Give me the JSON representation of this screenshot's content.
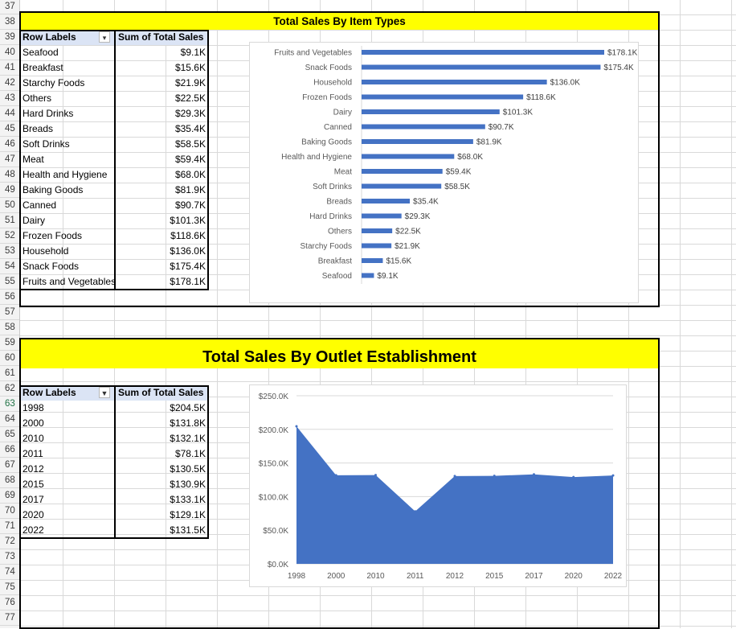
{
  "row_numbers": [
    "37",
    "38",
    "39",
    "40",
    "41",
    "42",
    "43",
    "44",
    "45",
    "46",
    "47",
    "48",
    "49",
    "50",
    "51",
    "52",
    "53",
    "54",
    "55",
    "56",
    "57",
    "58",
    "59",
    "60",
    "61",
    "62",
    "63",
    "64",
    "65",
    "66",
    "67",
    "68",
    "69",
    "70",
    "71",
    "72",
    "73",
    "74",
    "75",
    "76",
    "77"
  ],
  "active_row": "63",
  "item_section": {
    "banner_title": "Total Sales By Item Types",
    "pivot": {
      "header_label": "Row Labels",
      "header_value": "Sum of Total Sales",
      "filter_icon": "sort-filter-icon",
      "rows": [
        {
          "label": "Seafood",
          "value": "$9.1K"
        },
        {
          "label": "Breakfast",
          "value": "$15.6K"
        },
        {
          "label": "Starchy Foods",
          "value": "$21.9K"
        },
        {
          "label": "Others",
          "value": "$22.5K"
        },
        {
          "label": "Hard Drinks",
          "value": "$29.3K"
        },
        {
          "label": "Breads",
          "value": "$35.4K"
        },
        {
          "label": "Soft Drinks",
          "value": "$58.5K"
        },
        {
          "label": "Meat",
          "value": "$59.4K"
        },
        {
          "label": "Health and Hygiene",
          "value": "$68.0K"
        },
        {
          "label": "Baking Goods",
          "value": "$81.9K"
        },
        {
          "label": "Canned",
          "value": "$90.7K"
        },
        {
          "label": "Dairy",
          "value": "$101.3K"
        },
        {
          "label": "Frozen Foods",
          "value": "$118.6K"
        },
        {
          "label": "Household",
          "value": "$136.0K"
        },
        {
          "label": "Snack Foods",
          "value": "$175.4K"
        },
        {
          "label": "Fruits and Vegetables",
          "value": "$178.1K"
        }
      ]
    }
  },
  "outlet_section": {
    "banner_title": "Total Sales By Outlet Establishment",
    "pivot": {
      "header_label": "Row Labels",
      "header_value": "Sum of Total Sales",
      "filter_icon": "dropdown-icon",
      "rows": [
        {
          "label": "1998",
          "value": "$204.5K"
        },
        {
          "label": "2000",
          "value": "$131.8K"
        },
        {
          "label": "2010",
          "value": "$132.1K"
        },
        {
          "label": "2011",
          "value": "$78.1K"
        },
        {
          "label": "2012",
          "value": "$130.5K"
        },
        {
          "label": "2015",
          "value": "$130.9K"
        },
        {
          "label": "2017",
          "value": "$133.1K"
        },
        {
          "label": "2020",
          "value": "$129.1K"
        },
        {
          "label": "2022",
          "value": "$131.5K"
        }
      ]
    }
  },
  "colors": {
    "bar": "#4472c4",
    "banner": "#ffff00",
    "pivot_header": "#dbe4f5"
  },
  "chart_data": [
    {
      "type": "bar",
      "orientation": "horizontal",
      "title": "",
      "categories": [
        "Fruits and Vegetables",
        "Snack Foods",
        "Household",
        "Frozen Foods",
        "Dairy",
        "Canned",
        "Baking Goods",
        "Health and Hygiene",
        "Meat",
        "Soft Drinks",
        "Breads",
        "Hard Drinks",
        "Others",
        "Starchy Foods",
        "Breakfast",
        "Seafood"
      ],
      "values": [
        178.1,
        175.4,
        136.0,
        118.6,
        101.3,
        90.7,
        81.9,
        68.0,
        59.4,
        58.5,
        35.4,
        29.3,
        22.5,
        21.9,
        15.6,
        9.1
      ],
      "data_labels": [
        "$178.1K",
        "$175.4K",
        "$136.0K",
        "$118.6K",
        "$101.3K",
        "$90.7K",
        "$81.9K",
        "$68.0K",
        "$59.4K",
        "$58.5K",
        "$35.4K",
        "$29.3K",
        "$22.5K",
        "$21.9K",
        "$15.6K",
        "$9.1K"
      ],
      "xlim": [
        0,
        178.1
      ],
      "grid": false
    },
    {
      "type": "area",
      "title": "",
      "categories": [
        "1998",
        "2000",
        "2010",
        "2011",
        "2012",
        "2015",
        "2017",
        "2020",
        "2022"
      ],
      "values": [
        204.5,
        131.8,
        132.1,
        78.1,
        130.5,
        130.9,
        133.1,
        129.1,
        131.5
      ],
      "ylim": [
        0,
        250
      ],
      "y_ticks": [
        "$0.0K",
        "$50.0K",
        "$100.0K",
        "$150.0K",
        "$200.0K",
        "$250.0K"
      ],
      "grid": true
    }
  ]
}
